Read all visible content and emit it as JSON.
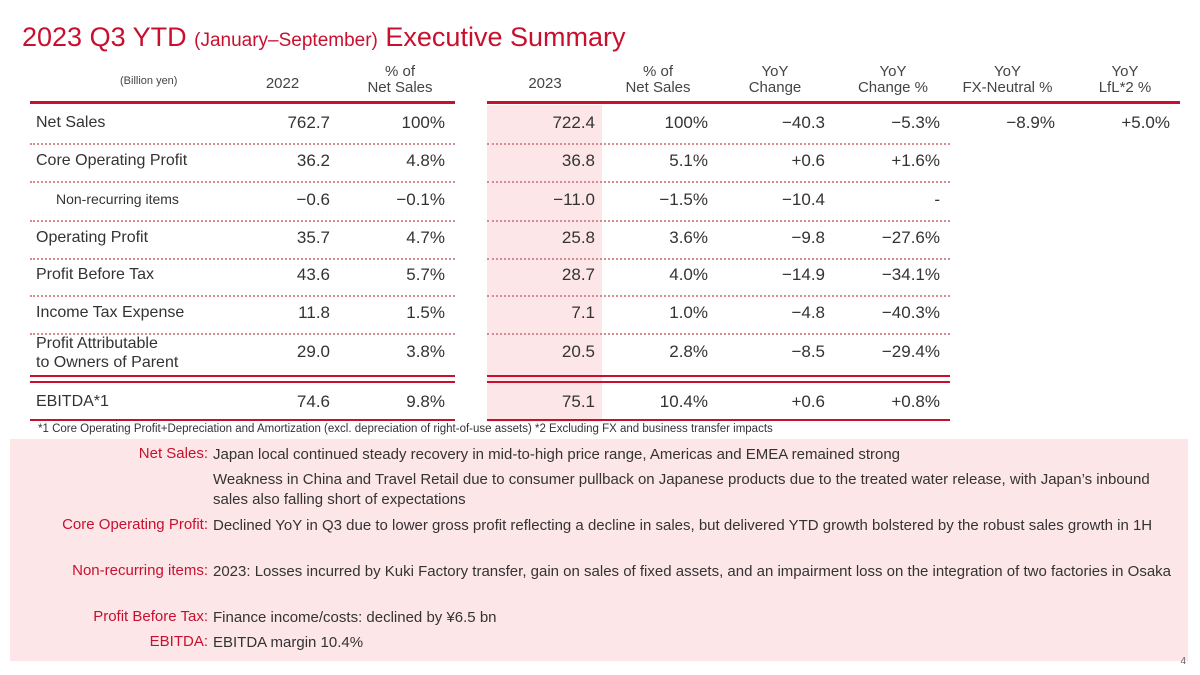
{
  "title": {
    "main": "2023 Q3 YTD",
    "sub": "(January–September)",
    "end": "Executive Summary"
  },
  "table": {
    "unit": "(Billion yen)",
    "headers": [
      "2022",
      "% of\nNet Sales",
      "2023",
      "% of\nNet Sales",
      "YoY\nChange",
      "YoY\nChange %",
      "YoY\nFX-Neutral %",
      "YoY\nLfL*2 %"
    ],
    "rows": [
      {
        "label": "Net Sales",
        "v": [
          "762.7",
          "100%",
          "722.4",
          "100%",
          "−40.3",
          "−5.3%",
          "−8.9%",
          "+5.0%"
        ]
      },
      {
        "label": "Core Operating Profit",
        "v": [
          "36.2",
          "4.8%",
          "36.8",
          "5.1%",
          "+0.6",
          "+1.6%"
        ]
      },
      {
        "label": "Non-recurring items",
        "v": [
          "−0.6",
          "−0.1%",
          "−11.0",
          "−1.5%",
          "−10.4",
          "-"
        ]
      },
      {
        "label": "Operating Profit",
        "v": [
          "35.7",
          "4.7%",
          "25.8",
          "3.6%",
          "−9.8",
          "−27.6%"
        ]
      },
      {
        "label": "Profit Before Tax",
        "v": [
          "43.6",
          "5.7%",
          "28.7",
          "4.0%",
          "−14.9",
          "−34.1%"
        ]
      },
      {
        "label": "Income Tax Expense",
        "v": [
          "11.8",
          "1.5%",
          "7.1",
          "1.0%",
          "−4.8",
          "−40.3%"
        ]
      },
      {
        "label": "Profit Attributable\nto Owners of Parent",
        "v": [
          "29.0",
          "3.8%",
          "20.5",
          "2.8%",
          "−8.5",
          "−29.4%"
        ]
      },
      {
        "label": "EBITDA*1",
        "v": [
          "74.6",
          "9.8%",
          "75.1",
          "10.4%",
          "+0.6",
          "+0.8%"
        ]
      }
    ]
  },
  "footnote": "*1 Core Operating Profit+Depreciation and Amortization (excl. depreciation of right-of-use assets)   *2 Excluding FX and business transfer impacts",
  "commentary": [
    {
      "key": "Net Sales:",
      "text": "Japan local continued steady recovery in mid-to-high price range, Americas and EMEA remained strong"
    },
    {
      "key": "",
      "text": "Weakness in China and Travel Retail due to consumer pullback on Japanese products due to the treated water release, with Japan’s inbound sales also falling short of expectations"
    },
    {
      "key": "Core Operating Profit:",
      "text": "Declined YoY in Q3 due to lower gross profit reflecting a decline in sales, but delivered YTD growth bolstered by the robust sales growth in 1H"
    },
    {
      "key": "Non-recurring items:",
      "text": "2023: Losses incurred by Kuki Factory transfer, gain on sales of fixed assets, and an impairment loss on the integration of two factories in Osaka"
    },
    {
      "key": "Profit Before Tax:",
      "text": "Finance income/costs: declined by ¥6.5 bn"
    },
    {
      "key": "EBITDA:",
      "text": "EBITDA margin 10.4%"
    }
  ],
  "page_number": "4",
  "colors": {
    "accent": "#c8102e",
    "highlight": "#fde6e8"
  }
}
